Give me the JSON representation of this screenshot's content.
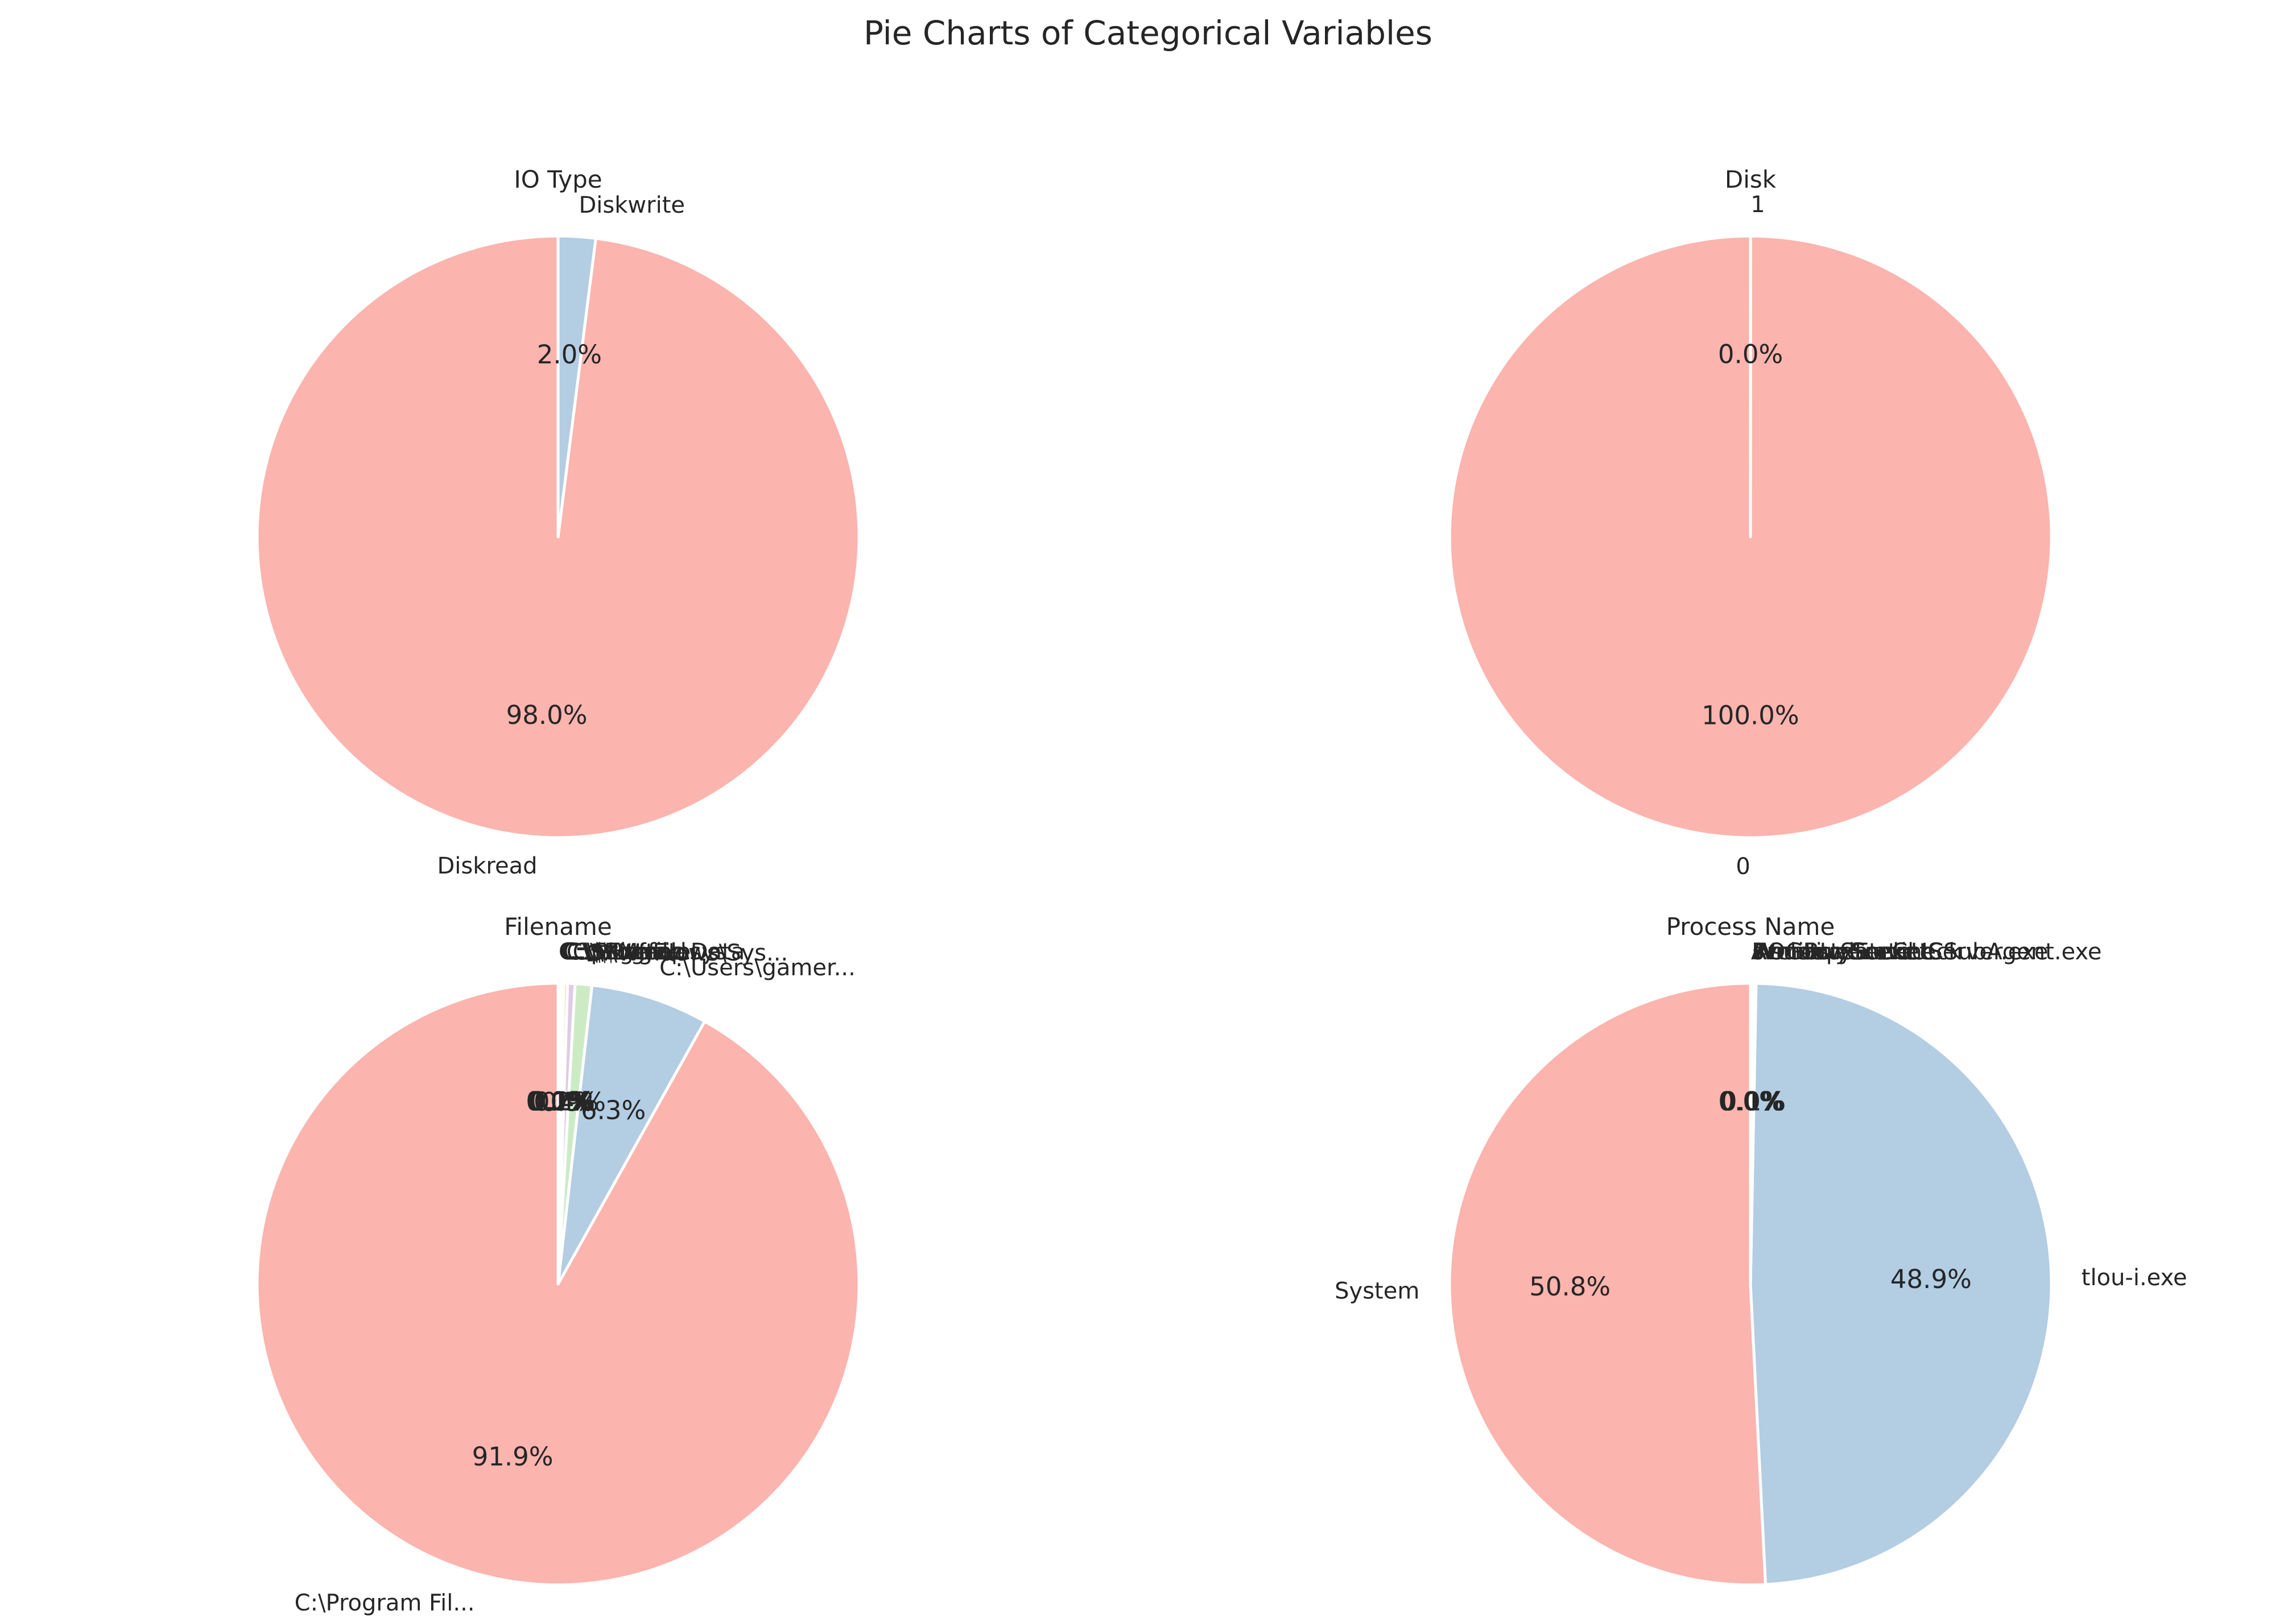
{
  "title": "Pie Charts of Categorical Variables",
  "chart_data": [
    {
      "type": "pie",
      "title": "IO Type",
      "start_angle_deg": 90,
      "direction": "counterclockwise",
      "slices": [
        {
          "label": "Diskread",
          "value": 98.0,
          "pct_label": "98.0%",
          "color": "#fbb4ae"
        },
        {
          "label": "Diskwrite",
          "value": 2.0,
          "pct_label": "2.0%",
          "color": "#b3cde3"
        }
      ]
    },
    {
      "type": "pie",
      "title": "Disk",
      "start_angle_deg": 90,
      "direction": "counterclockwise",
      "slices": [
        {
          "label": "0",
          "value": 99.99,
          "pct_label": "100.0%",
          "color": "#fbb4ae"
        },
        {
          "label": "1",
          "value": 0.01,
          "pct_label": "0.0%",
          "color": "#b3cde3"
        }
      ]
    },
    {
      "type": "pie",
      "title": "Filename",
      "start_angle_deg": 90,
      "direction": "counterclockwise",
      "slices": [
        {
          "label": "C:\\Program Fil...",
          "value": 91.9,
          "pct_label": "91.9%",
          "color": "#fbb4ae"
        },
        {
          "label": "C:\\Users\\gamer...",
          "value": 6.3,
          "pct_label": "6.3%",
          "color": "#b3cde3"
        },
        {
          "label": "C:\\Windows\\Sys...",
          "value": 0.9,
          "pct_label": "0.9%",
          "color": "#ccebc5"
        },
        {
          "label": "C:\\$Mft",
          "value": 0.4,
          "pct_label": "0.4%",
          "color": "#decbe4"
        },
        {
          "label": "C:\\$LogFile",
          "value": 0.2,
          "pct_label": "0.2%",
          "color": "#fed9a6"
        },
        {
          "label": "C:\\ProgramData",
          "value": 0.1,
          "pct_label": "0.1%",
          "color": "#ffffcc"
        },
        {
          "label": "C:\\$Extend",
          "value": 0.1,
          "pct_label": "0.1%",
          "color": "#e5d8bd"
        },
        {
          "label": "C:\\pagefile.sys",
          "value": 0.05,
          "pct_label": "0.0%",
          "color": "#fddaec"
        },
        {
          "label": "C:\\$Bitmap",
          "value": 0.05,
          "pct_label": "0.0%",
          "color": "#f2f2f2"
        }
      ]
    },
    {
      "type": "pie",
      "title": "Process Name",
      "start_angle_deg": 90,
      "direction": "counterclockwise",
      "slices": [
        {
          "label": "System",
          "value": 50.8,
          "pct_label": "50.8%",
          "color": "#fbb4ae"
        },
        {
          "label": "tlou-i.exe",
          "value": 48.9,
          "pct_label": "48.9%",
          "color": "#b3cde3"
        },
        {
          "label": "AsusUpdateCheck",
          "value": 0.1,
          "pct_label": "0.1%",
          "color": "#ccebc5"
        },
        {
          "label": "ArmourySocketServer.exe",
          "value": 0.05,
          "pct_label": "0.0%",
          "color": "#decbe4"
        },
        {
          "label": "WmiPrvSE.exe",
          "value": 0.05,
          "pct_label": "0.0%",
          "color": "#fed9a6"
        },
        {
          "label": "svchost.exe",
          "value": 0.03,
          "pct_label": "0.0%",
          "color": "#ffffcc"
        },
        {
          "label": "ROGLiveService",
          "value": 0.02,
          "pct_label": "0.0%",
          "color": "#e5d8bd"
        },
        {
          "label": "ArmouryCrateUCSubAgent.exe",
          "value": 0.05,
          "pct_label": "0.0%",
          "color": "#fddaec"
        }
      ]
    }
  ]
}
